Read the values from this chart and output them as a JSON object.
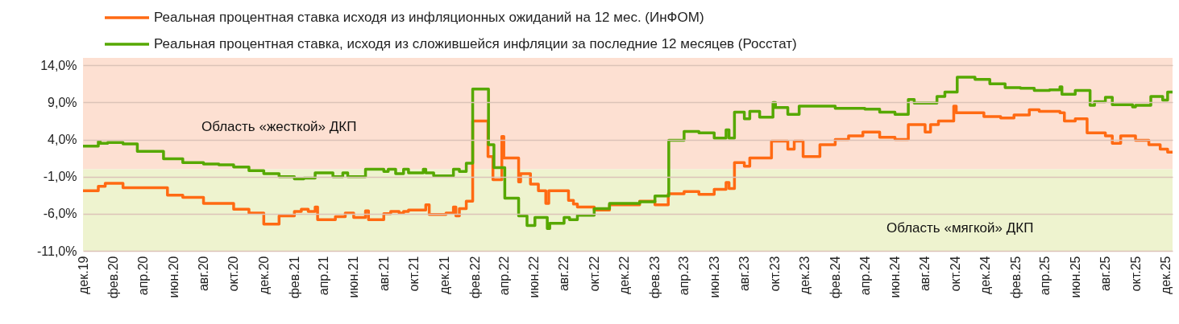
{
  "chart_data": {
    "type": "step",
    "xlim": [
      "2019-12-01",
      "2025-12-15"
    ],
    "ylim": [
      -11,
      15
    ],
    "yticks": [
      {
        "value": -11,
        "label": "-11,0%"
      },
      {
        "value": -6,
        "label": "-6,0%"
      },
      {
        "value": -1,
        "label": "-1,0%"
      },
      {
        "value": 4,
        "label": "4,0%"
      },
      {
        "value": 9,
        "label": "9,0%"
      },
      {
        "value": 14,
        "label": "14,0%"
      }
    ],
    "xticks": [
      {
        "value": "2019-12-01",
        "label": "дек.19"
      },
      {
        "value": "2020-02-01",
        "label": "фев.20"
      },
      {
        "value": "2020-04-01",
        "label": "апр.20"
      },
      {
        "value": "2020-06-01",
        "label": "июн.20"
      },
      {
        "value": "2020-08-01",
        "label": "авг.20"
      },
      {
        "value": "2020-10-01",
        "label": "окт.20"
      },
      {
        "value": "2020-12-01",
        "label": "дек.20"
      },
      {
        "value": "2021-02-01",
        "label": "фев.21"
      },
      {
        "value": "2021-04-01",
        "label": "апр.21"
      },
      {
        "value": "2021-06-01",
        "label": "июн.21"
      },
      {
        "value": "2021-08-01",
        "label": "авг.21"
      },
      {
        "value": "2021-10-01",
        "label": "окт.21"
      },
      {
        "value": "2021-12-01",
        "label": "дек.21"
      },
      {
        "value": "2022-02-01",
        "label": "фев.22"
      },
      {
        "value": "2022-04-01",
        "label": "апр.22"
      },
      {
        "value": "2022-06-01",
        "label": "июн.22"
      },
      {
        "value": "2022-08-01",
        "label": "авг.22"
      },
      {
        "value": "2022-10-01",
        "label": "окт.22"
      },
      {
        "value": "2022-12-01",
        "label": "дек.22"
      },
      {
        "value": "2023-02-01",
        "label": "фев.23"
      },
      {
        "value": "2023-04-01",
        "label": "апр.23"
      },
      {
        "value": "2023-06-01",
        "label": "июн.23"
      },
      {
        "value": "2023-08-01",
        "label": "авг.23"
      },
      {
        "value": "2023-10-01",
        "label": "окт.23"
      },
      {
        "value": "2023-12-01",
        "label": "дек.23"
      },
      {
        "value": "2024-02-01",
        "label": "фев.24"
      },
      {
        "value": "2024-04-01",
        "label": "апр.24"
      },
      {
        "value": "2024-06-01",
        "label": "июн.24"
      },
      {
        "value": "2024-08-01",
        "label": "авг.24"
      },
      {
        "value": "2024-10-01",
        "label": "окт.24"
      },
      {
        "value": "2024-12-01",
        "label": "дек.24"
      },
      {
        "value": "2025-02-01",
        "label": "фев.25"
      },
      {
        "value": "2025-04-01",
        "label": "апр.25"
      },
      {
        "value": "2025-06-01",
        "label": "июн.25"
      },
      {
        "value": "2025-08-01",
        "label": "авг.25"
      },
      {
        "value": "2025-10-01",
        "label": "окт.25"
      },
      {
        "value": "2025-12-01",
        "label": "дек.25"
      }
    ],
    "grid": "y",
    "legend": "top left",
    "line_style": "solid",
    "bands": [
      {
        "axis": "y",
        "from": 0,
        "to": 15,
        "label": "Область «жесткой» ДКП",
        "color": "#fde0d2"
      },
      {
        "axis": "y",
        "from": -11,
        "to": 0,
        "label": "Область «мягкой» ДКП",
        "color": "#eef3cf"
      }
    ],
    "series": [
      {
        "name": "Реальная процентная ставка исходя из инфляционных ожиданий на 12 мес. (ИнФОМ)",
        "color": "#ff6a13",
        "x": [
          "2019-12-01",
          "2020-01-01",
          "2020-01-15",
          "2020-02-20",
          "2020-05-20",
          "2020-06-20",
          "2020-08-01",
          "2020-10-01",
          "2020-11-01",
          "2020-12-01",
          "2021-01-01",
          "2021-02-01",
          "2021-02-15",
          "2021-03-01",
          "2021-03-15",
          "2021-03-20",
          "2021-04-25",
          "2021-05-15",
          "2021-06-01",
          "2021-06-25",
          "2021-07-01",
          "2021-08-01",
          "2021-08-15",
          "2021-09-01",
          "2021-09-10",
          "2021-09-20",
          "2021-10-25",
          "2021-11-01",
          "2021-12-05",
          "2021-12-20",
          "2021-12-25",
          "2022-01-01",
          "2022-01-15",
          "2022-01-28",
          "2022-02-28",
          "2022-03-10",
          "2022-03-28",
          "2022-04-01",
          "2022-05-01",
          "2022-05-05",
          "2022-05-25",
          "2022-06-10",
          "2022-06-25",
          "2022-07-01",
          "2022-08-10",
          "2022-08-20",
          "2022-08-28",
          "2022-10-01",
          "2022-11-01",
          "2023-01-01",
          "2023-02-01",
          "2023-02-28",
          "2023-04-01",
          "2023-05-01",
          "2023-06-01",
          "2023-06-25",
          "2023-07-01",
          "2023-07-12",
          "2023-08-01",
          "2023-08-12",
          "2023-09-25",
          "2023-10-28",
          "2023-11-10",
          "2023-11-28",
          "2024-01-01",
          "2024-02-01",
          "2024-02-28",
          "2024-03-28",
          "2024-05-01",
          "2024-06-01",
          "2024-06-28",
          "2024-08-01",
          "2024-08-12",
          "2024-08-28",
          "2024-09-28",
          "2024-10-03",
          "2024-11-28",
          "2025-01-01",
          "2025-01-28",
          "2025-02-28",
          "2025-03-20",
          "2025-05-01",
          "2025-05-10",
          "2025-06-01",
          "2025-06-25",
          "2025-08-01",
          "2025-08-15",
          "2025-09-01",
          "2025-10-01",
          "2025-10-28",
          "2025-11-20",
          "2025-12-05",
          "2025-12-15"
        ],
        "values": [
          -2.9,
          -2.3,
          -1.9,
          -2.5,
          -3.5,
          -3.8,
          -4.6,
          -5.4,
          -5.9,
          -7.4,
          -6.3,
          -5.7,
          -5.4,
          -5.7,
          -5.1,
          -6.8,
          -6.4,
          -5.9,
          -6.5,
          -5.6,
          -6.8,
          -6.0,
          -5.7,
          -5.9,
          -5.7,
          -5.5,
          -4.8,
          -6.1,
          -5.9,
          -5.1,
          -6.3,
          -5.3,
          -4.3,
          6.5,
          1.7,
          -1.4,
          4.4,
          1.5,
          -1.7,
          -0.6,
          -2.0,
          -2.9,
          -4.6,
          -2.9,
          -4.2,
          -4.7,
          -5.1,
          -5.5,
          -4.8,
          -4.3,
          -4.8,
          -3.3,
          -3.0,
          -3.4,
          -2.7,
          -1.8,
          -2.6,
          0.9,
          0.4,
          1.5,
          3.8,
          2.7,
          3.8,
          1.7,
          3.3,
          4.0,
          4.5,
          5.0,
          4.3,
          4.0,
          6.0,
          5.0,
          6.0,
          6.5,
          8.5,
          7.6,
          7.1,
          6.9,
          7.3,
          8.0,
          7.8,
          7.6,
          6.5,
          6.8,
          4.9,
          4.5,
          3.5,
          4.5,
          3.9,
          3.3,
          2.7,
          2.3,
          2.3
        ]
      },
      {
        "name": "Реальная процентная ставка, исходя из сложившейся инфляции за последние 12 месяцев (Росстат)",
        "color": "#56a800",
        "x": [
          "2019-12-01",
          "2020-01-01",
          "2020-01-05",
          "2020-01-20",
          "2020-02-20",
          "2020-03-20",
          "2020-05-12",
          "2020-06-20",
          "2020-08-01",
          "2020-09-01",
          "2020-10-01",
          "2020-11-01",
          "2020-12-01",
          "2021-01-01",
          "2021-02-01",
          "2021-02-20",
          "2021-03-15",
          "2021-04-20",
          "2021-05-10",
          "2021-05-20",
          "2021-06-25",
          "2021-08-01",
          "2021-08-10",
          "2021-08-25",
          "2021-09-10",
          "2021-09-20",
          "2021-10-20",
          "2021-10-25",
          "2021-11-10",
          "2021-12-20",
          "2022-01-01",
          "2022-01-15",
          "2022-01-28",
          "2022-03-01",
          "2022-03-12",
          "2022-04-03",
          "2022-05-01",
          "2022-05-18",
          "2022-06-03",
          "2022-06-28",
          "2022-07-03",
          "2022-08-01",
          "2022-08-12",
          "2022-08-28",
          "2022-10-01",
          "2022-11-01",
          "2023-01-01",
          "2023-02-01",
          "2023-03-01",
          "2023-04-01",
          "2023-05-01",
          "2023-06-01",
          "2023-06-25",
          "2023-07-01",
          "2023-07-12",
          "2023-08-01",
          "2023-08-12",
          "2023-09-01",
          "2023-09-28",
          "2023-10-03",
          "2023-10-28",
          "2023-11-20",
          "2024-02-01",
          "2024-04-01",
          "2024-05-01",
          "2024-06-01",
          "2024-06-28",
          "2024-07-10",
          "2024-08-25",
          "2024-09-10",
          "2024-10-05",
          "2024-11-10",
          "2024-12-10",
          "2025-01-10",
          "2025-02-10",
          "2025-03-10",
          "2025-04-10",
          "2025-05-01",
          "2025-05-05",
          "2025-06-01",
          "2025-07-01",
          "2025-07-10",
          "2025-08-01",
          "2025-08-15",
          "2025-09-25",
          "2025-10-01",
          "2025-11-01",
          "2025-11-25",
          "2025-12-05",
          "2025-12-15"
        ],
        "values": [
          3.1,
          3.7,
          3.5,
          3.6,
          3.4,
          2.4,
          1.4,
          0.9,
          0.7,
          0.6,
          0.3,
          -0.2,
          -0.6,
          -1.0,
          -1.3,
          -1.2,
          -0.5,
          -1.0,
          -0.5,
          -1.0,
          0.0,
          -0.3,
          0.0,
          -0.6,
          0.0,
          -0.5,
          0.0,
          -0.5,
          -0.9,
          0.0,
          -0.3,
          0.8,
          10.8,
          3.3,
          0.2,
          -3.9,
          -6.3,
          -7.6,
          -6.5,
          -8.0,
          -7.3,
          -6.5,
          -6.8,
          -6.2,
          -5.3,
          -4.6,
          -4.4,
          -3.6,
          3.9,
          5.1,
          4.9,
          4.2,
          5.3,
          4.2,
          7.7,
          6.8,
          7.8,
          7.0,
          9.0,
          8.3,
          7.4,
          8.5,
          8.2,
          8.1,
          7.7,
          7.4,
          9.4,
          8.9,
          9.8,
          10.4,
          12.4,
          12.1,
          11.5,
          11.0,
          10.9,
          10.6,
          10.7,
          11.1,
          10.1,
          10.6,
          8.6,
          9.1,
          9.7,
          8.7,
          8.4,
          8.6,
          9.8,
          9.3,
          10.4,
          10.4
        ]
      }
    ]
  }
}
